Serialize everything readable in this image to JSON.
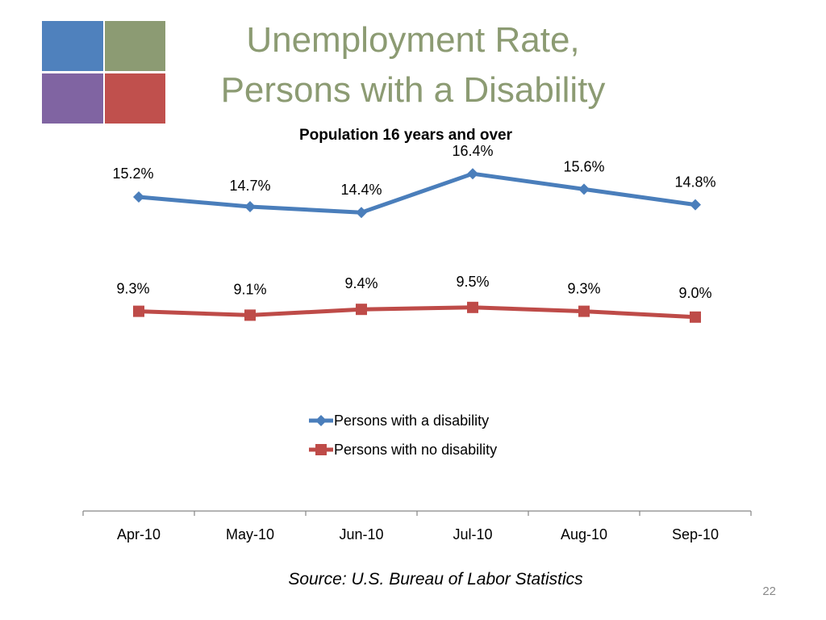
{
  "slide": {
    "title_line1": "Unemployment Rate,",
    "title_line2": "Persons with a Disability",
    "source": "Source: U.S. Bureau of Labor Statistics",
    "page_number": "22",
    "logo_colors": [
      "#4f81bd",
      "#8c9b73",
      "#8064a2",
      "#c0504d"
    ]
  },
  "chart_data": {
    "type": "line",
    "title": "Population 16 years and over",
    "categories": [
      "Apr-10",
      "May-10",
      "Jun-10",
      "Jul-10",
      "Aug-10",
      "Sep-10"
    ],
    "series": [
      {
        "name": "Persons with a disability",
        "values": [
          15.2,
          14.7,
          14.4,
          16.4,
          15.6,
          14.8
        ],
        "labels": [
          "15.2%",
          "14.7%",
          "14.4%",
          "16.4%",
          "15.6%",
          "14.8%"
        ],
        "color": "#4a7ebb",
        "marker": "diamond"
      },
      {
        "name": "Persons with no disability",
        "values": [
          9.3,
          9.1,
          9.4,
          9.5,
          9.3,
          9.0
        ],
        "labels": [
          "9.3%",
          "9.1%",
          "9.4%",
          "9.5%",
          "9.3%",
          "9.0%"
        ],
        "color": "#be4b48",
        "marker": "square"
      }
    ],
    "legend_placement": "center",
    "grid": false
  }
}
